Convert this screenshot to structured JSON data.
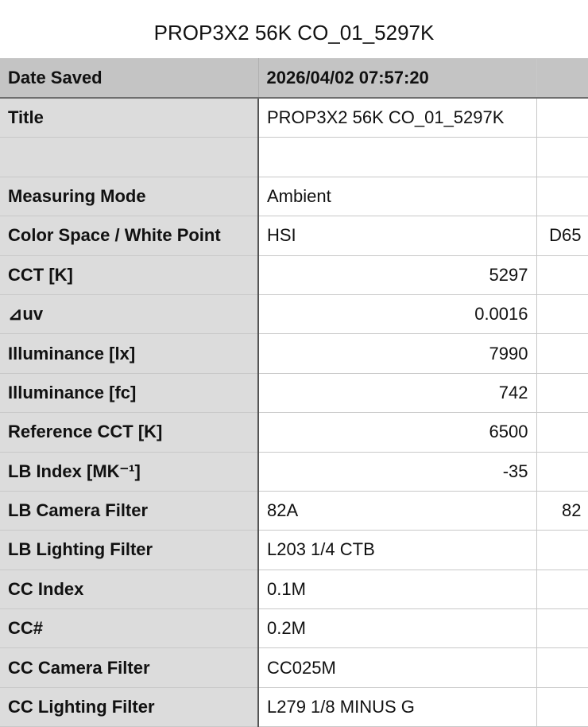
{
  "title": "PROP3X2 56K CO_01_5297K",
  "header": {
    "label": "Date Saved",
    "value": "2026/04/02 07:57:20",
    "extra": ""
  },
  "rows": [
    {
      "label": "Title",
      "value": "PROP3X2 56K CO_01_5297K",
      "extra": "",
      "align": "left"
    },
    {
      "label": "",
      "value": "",
      "extra": "",
      "align": "left"
    },
    {
      "label": "Measuring Mode",
      "value": "Ambient",
      "extra": "",
      "align": "left"
    },
    {
      "label": "Color Space / White Point",
      "value": "HSI",
      "extra": "D65",
      "align": "left"
    },
    {
      "label": "CCT [K]",
      "value": "5297",
      "extra": "",
      "align": "right"
    },
    {
      "label": "⊿uv",
      "value": "0.0016",
      "extra": "",
      "align": "right"
    },
    {
      "label": "Illuminance [lx]",
      "value": "7990",
      "extra": "",
      "align": "right"
    },
    {
      "label": "Illuminance [fc]",
      "value": "742",
      "extra": "",
      "align": "right"
    },
    {
      "label": "Reference CCT [K]",
      "value": "6500",
      "extra": "",
      "align": "right"
    },
    {
      "label": "LB Index [MK⁻¹]",
      "value": "-35",
      "extra": "",
      "align": "right"
    },
    {
      "label": "LB Camera Filter",
      "value": "82A",
      "extra": "82",
      "align": "left"
    },
    {
      "label": "LB Lighting Filter",
      "value": "L203 1/4 CTB",
      "extra": "",
      "align": "left"
    },
    {
      "label": "CC Index",
      "value": "0.1M",
      "extra": "",
      "align": "left"
    },
    {
      "label": "CC#",
      "value": "0.2M",
      "extra": "",
      "align": "left"
    },
    {
      "label": "CC Camera Filter",
      "value": "CC025M",
      "extra": "",
      "align": "left"
    },
    {
      "label": "CC Lighting Filter",
      "value": "L279 1/8 MINUS G",
      "extra": "",
      "align": "left"
    }
  ]
}
